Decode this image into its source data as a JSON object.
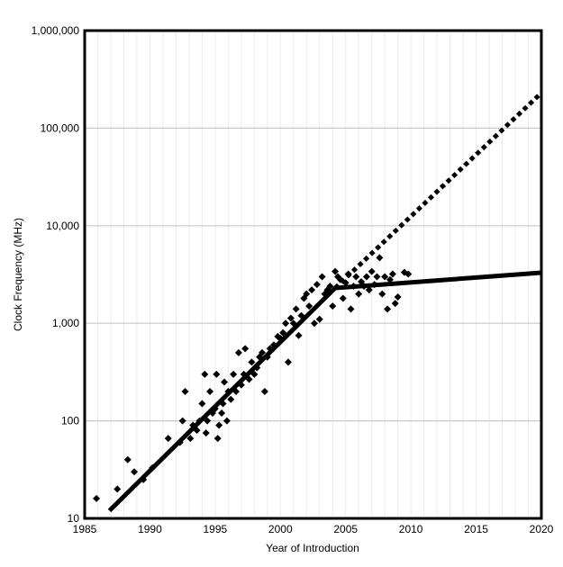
{
  "chart_data": {
    "type": "scatter",
    "title": "",
    "xlabel": "Year of Introduction",
    "ylabel": "Clock Frequency (MHz)",
    "xlim": [
      1985,
      2020
    ],
    "ylim": [
      10,
      1000000
    ],
    "y_scale": "log",
    "x_ticks": [
      1985,
      1990,
      1995,
      2000,
      2005,
      2010,
      2015,
      2020
    ],
    "x_tick_labels": [
      "1985",
      "1990",
      "1995",
      "2000",
      "2005",
      "2010",
      "2015",
      "2020"
    ],
    "y_ticks": [
      10,
      100,
      1000,
      10000,
      100000,
      1000000
    ],
    "y_tick_labels": [
      "10",
      "100",
      "1,000",
      "10,000",
      "100,000",
      "1,000,000"
    ],
    "grid": "horizontal major + minor vertical",
    "legend": "none",
    "colors": {
      "marks": "#000000",
      "grid": "#c8c8c8"
    },
    "scatter_points": [
      [
        1985.9,
        16
      ],
      [
        1987.5,
        20
      ],
      [
        1988.3,
        40
      ],
      [
        1988.8,
        30
      ],
      [
        1989.5,
        25
      ],
      [
        1990.2,
        33
      ],
      [
        1991.4,
        66
      ],
      [
        1992.3,
        60
      ],
      [
        1992.5,
        100
      ],
      [
        1992.7,
        200
      ],
      [
        1993.1,
        66
      ],
      [
        1993.3,
        90
      ],
      [
        1993.6,
        80
      ],
      [
        1993.8,
        100
      ],
      [
        1994.0,
        150
      ],
      [
        1994.2,
        300
      ],
      [
        1994.3,
        75
      ],
      [
        1994.4,
        100
      ],
      [
        1994.6,
        200
      ],
      [
        1994.8,
        120
      ],
      [
        1995.0,
        133
      ],
      [
        1995.1,
        300
      ],
      [
        1995.2,
        66
      ],
      [
        1995.3,
        90
      ],
      [
        1995.5,
        120
      ],
      [
        1995.6,
        150
      ],
      [
        1995.7,
        250
      ],
      [
        1995.9,
        100
      ],
      [
        1996.0,
        200
      ],
      [
        1996.2,
        166
      ],
      [
        1996.4,
        300
      ],
      [
        1996.6,
        200
      ],
      [
        1996.8,
        500
      ],
      [
        1997.0,
        233
      ],
      [
        1997.2,
        300
      ],
      [
        1997.3,
        550
      ],
      [
        1997.6,
        266
      ],
      [
        1997.8,
        400
      ],
      [
        1998.0,
        300
      ],
      [
        1998.2,
        350
      ],
      [
        1998.4,
        450
      ],
      [
        1998.6,
        500
      ],
      [
        1998.8,
        200
      ],
      [
        1999.0,
        450
      ],
      [
        1999.2,
        550
      ],
      [
        1999.5,
        600
      ],
      [
        1999.8,
        733
      ],
      [
        2000.0,
        700
      ],
      [
        2000.2,
        800
      ],
      [
        2000.4,
        1000
      ],
      [
        2000.6,
        400
      ],
      [
        2000.8,
        1130
      ],
      [
        2001.0,
        1000
      ],
      [
        2001.2,
        1400
      ],
      [
        2001.4,
        750
      ],
      [
        2001.6,
        1200
      ],
      [
        2001.8,
        1800
      ],
      [
        2002.0,
        2000
      ],
      [
        2002.2,
        1500
      ],
      [
        2002.4,
        2200
      ],
      [
        2002.6,
        1000
      ],
      [
        2002.8,
        2500
      ],
      [
        2003.0,
        1100
      ],
      [
        2003.2,
        3000
      ],
      [
        2003.4,
        2000
      ],
      [
        2003.6,
        2200
      ],
      [
        2003.8,
        2400
      ],
      [
        2004.0,
        1500
      ],
      [
        2004.2,
        3400
      ],
      [
        2004.4,
        3000
      ],
      [
        2004.6,
        2800
      ],
      [
        2004.8,
        1800
      ],
      [
        2005.0,
        2600
      ],
      [
        2005.2,
        3200
      ],
      [
        2005.4,
        1400
      ],
      [
        2005.6,
        2400
      ],
      [
        2005.8,
        3000
      ],
      [
        2006.0,
        2000
      ],
      [
        2006.2,
        2666
      ],
      [
        2006.4,
        2400
      ],
      [
        2006.6,
        3000
      ],
      [
        2006.8,
        2200
      ],
      [
        2007.0,
        3400
      ],
      [
        2007.2,
        2500
      ],
      [
        2007.4,
        3000
      ],
      [
        2007.6,
        4700
      ],
      [
        2007.8,
        2000
      ],
      [
        2008.0,
        3000
      ],
      [
        2008.2,
        1400
      ],
      [
        2008.4,
        2800
      ],
      [
        2008.6,
        3200
      ],
      [
        2008.8,
        1600
      ],
      [
        2009.0,
        1860
      ],
      [
        2009.5,
        3330
      ],
      [
        2009.8,
        3200
      ]
    ],
    "series": [
      {
        "style": "solid",
        "x": [
          1986.9,
          2004.2,
          2020.0
        ],
        "y": [
          12,
          2300,
          3300
        ]
      },
      {
        "style": "dotted",
        "x": [
          2004.2,
          2020.0
        ],
        "y": [
          2300,
          230000
        ]
      }
    ]
  }
}
